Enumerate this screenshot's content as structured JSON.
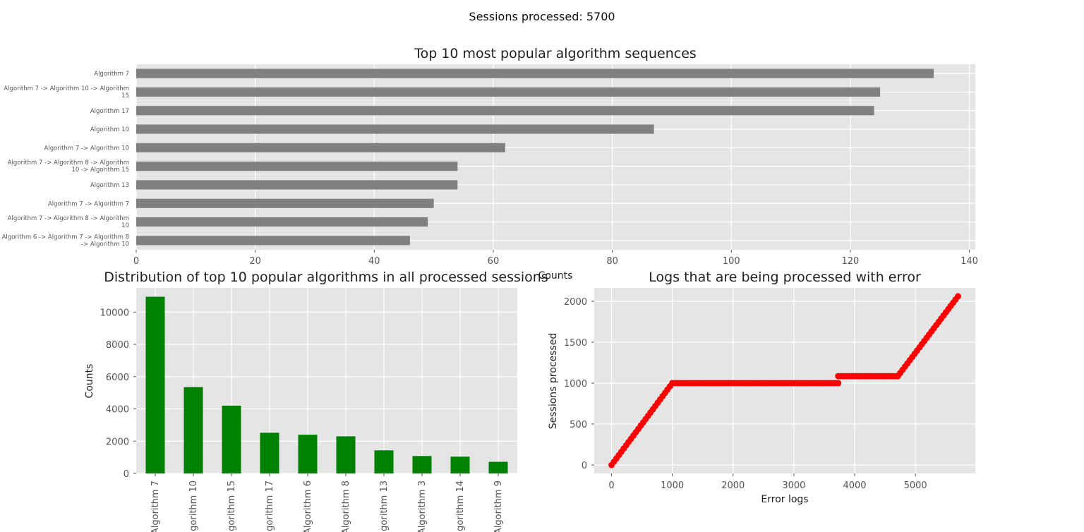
{
  "figure": {
    "suptitle": "Sessions processed: 5700"
  },
  "chart_data": [
    {
      "type": "bar",
      "orientation": "horizontal",
      "title": "Top 10 most popular algorithm sequences",
      "xlabel": "Counts",
      "ylabel": "",
      "xlim": [
        0,
        141
      ],
      "xticks": [
        0,
        20,
        40,
        60,
        80,
        100,
        120,
        140
      ],
      "grid": true,
      "color": "#808080",
      "categories": [
        [
          "Algorithm 7"
        ],
        [
          "Algorithm 7 -> Algorithm 10 -> Algorithm",
          "15"
        ],
        [
          "Algorithm 17"
        ],
        [
          "Algorithm 10"
        ],
        [
          "Algorithm 7 -> Algorithm 10"
        ],
        [
          "Algorithm 7 -> Algorithm 8 -> Algorithm",
          "10 -> Algorithm 15"
        ],
        [
          "Algorithm 13"
        ],
        [
          "Algorithm 7 -> Algorithm 7"
        ],
        [
          "Algorithm 7 -> Algorithm 8 -> Algorithm",
          "10"
        ],
        [
          "Algorithm 6 -> Algorithm 7 -> Algorithm 8",
          "-> Algorithm 10"
        ]
      ],
      "values": [
        134,
        125,
        124,
        87,
        62,
        54,
        54,
        50,
        49,
        46
      ]
    },
    {
      "type": "bar",
      "orientation": "vertical",
      "title": "Distribution of top 10 popular algorithms in all processed sessions",
      "xlabel": "",
      "ylabel": "Counts",
      "ylim": [
        0,
        11500
      ],
      "yticks": [
        0,
        2000,
        4000,
        6000,
        8000,
        10000
      ],
      "grid": true,
      "color": "#008000",
      "categories": [
        "Algorithm 7",
        "Algorithm 10",
        "Algorithm 15",
        "Algorithm 17",
        "Algorithm 6",
        "Algorithm 8",
        "Algorithm 13",
        "Algorithm 3",
        "Algorithm 14",
        "Algorithm 9"
      ],
      "values": [
        10950,
        5350,
        4200,
        2520,
        2400,
        2300,
        1430,
        1080,
        1040,
        720
      ]
    },
    {
      "type": "scatter",
      "title": "Logs that are being processed with error",
      "xlabel": "Error logs",
      "ylabel": "Sessions processed",
      "xlim": [
        -285,
        5985
      ],
      "ylim": [
        -103,
        2163
      ],
      "xticks": [
        0,
        1000,
        2000,
        3000,
        4000,
        5000
      ],
      "yticks": [
        0,
        500,
        1000,
        1500,
        2000
      ],
      "grid": true,
      "color": "#ff0000",
      "segments": [
        {
          "x_start": 0,
          "x_end": 1000,
          "y_start": 0,
          "y_end": 1000
        },
        {
          "x_start": 1000,
          "x_end": 3730,
          "y_start": 1000,
          "y_end": 1000
        },
        {
          "x_start": 3730,
          "x_end": 4710,
          "y_start": 1085,
          "y_end": 1085
        },
        {
          "x_start": 4710,
          "x_end": 5700,
          "y_start": 1085,
          "y_end": 2060
        }
      ]
    }
  ]
}
